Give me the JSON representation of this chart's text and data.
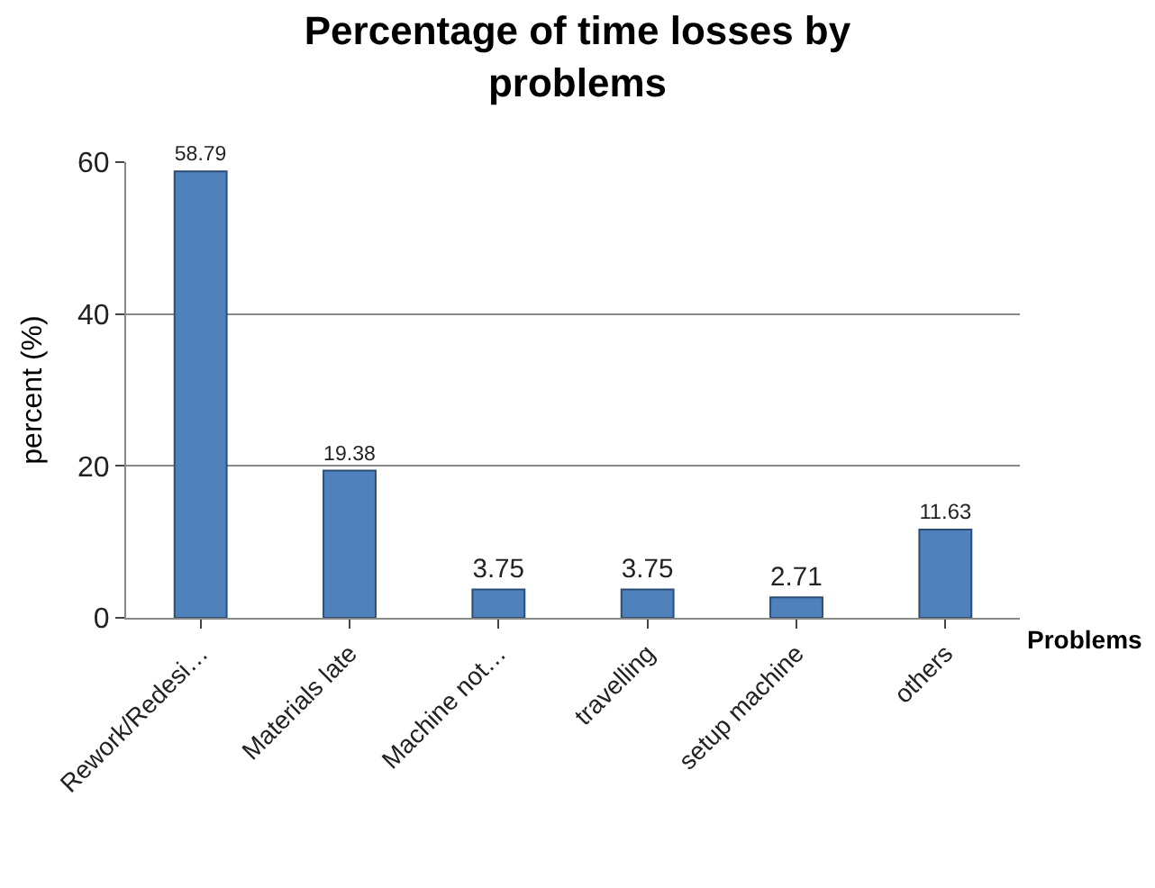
{
  "chart_data": {
    "type": "bar",
    "title": "Percentage of time losses by problems",
    "xlabel": "Problems",
    "ylabel": "percent (%)",
    "categories": [
      "Rework/Redesi…",
      "Materials late",
      "Machine not…",
      "travelling",
      "setup machine",
      "others"
    ],
    "values": [
      58.79,
      19.38,
      3.75,
      3.75,
      2.71,
      11.63
    ],
    "color": "#4f81bd",
    "data_labels": true,
    "ylim": [
      0,
      60
    ],
    "yticks": [
      0,
      20,
      40,
      60
    ],
    "grid": "y",
    "legend": false
  }
}
